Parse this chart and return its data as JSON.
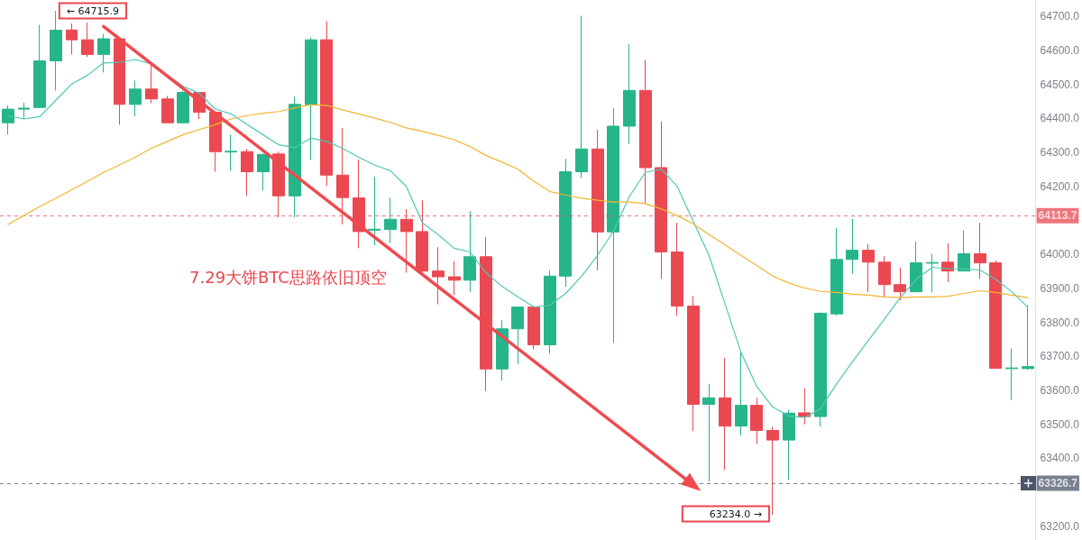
{
  "chart_data": {
    "type": "candlestick",
    "categories": [
      null,
      null,
      null,
      null,
      null,
      null,
      null,
      null,
      null,
      null,
      null,
      null,
      null,
      null,
      null,
      null,
      null,
      null,
      null,
      null,
      null,
      null,
      null,
      null,
      null,
      null,
      null,
      null,
      null,
      null,
      null,
      null,
      null,
      null,
      null,
      null,
      null,
      null,
      null,
      null,
      null,
      null,
      null,
      null,
      null,
      null,
      null,
      null,
      null,
      null,
      null,
      null,
      null,
      null,
      null,
      null,
      null,
      null,
      null,
      null,
      null,
      null,
      null,
      null,
      null
    ],
    "ohlc": [
      [
        64387,
        64438,
        64352,
        64427
      ],
      [
        64427,
        64446,
        64398,
        64430
      ],
      [
        64432,
        64675,
        64430,
        64569
      ],
      [
        64569,
        64715.9,
        64481,
        64659
      ],
      [
        64660,
        64679,
        64588,
        64631
      ],
      [
        64631,
        64682,
        64580,
        64588
      ],
      [
        64588,
        64648,
        64535,
        64634
      ],
      [
        64634,
        64636,
        64381,
        64441
      ],
      [
        64441,
        64511,
        64406,
        64486
      ],
      [
        64486,
        64559,
        64444,
        64457
      ],
      [
        64457,
        64466,
        64387,
        64387
      ],
      [
        64387,
        64480,
        64385,
        64476
      ],
      [
        64476,
        64478,
        64398,
        64418
      ],
      [
        64418,
        64420,
        64243,
        64302
      ],
      [
        64301,
        64352,
        64246,
        64303
      ],
      [
        64302,
        64310,
        64172,
        64243
      ],
      [
        64243,
        64296,
        64188,
        64294
      ],
      [
        64295,
        64302,
        64109,
        64172
      ],
      [
        64172,
        64464,
        64109,
        64441
      ],
      [
        64440,
        64638,
        64278,
        64631
      ],
      [
        64631,
        64685,
        64201,
        64233
      ],
      [
        64233,
        64372,
        64088,
        64167
      ],
      [
        64166,
        64279,
        64018,
        64067
      ],
      [
        64071,
        64228,
        64026,
        64074
      ],
      [
        64073,
        64167,
        64033,
        64103
      ],
      [
        64103,
        64133,
        63946,
        64067
      ],
      [
        64067,
        64159,
        63948,
        63951
      ],
      [
        63951,
        64021,
        63853,
        63934
      ],
      [
        63934,
        63980,
        63880,
        63924
      ],
      [
        63924,
        64127,
        63889,
        63993
      ],
      [
        63993,
        64050,
        63598,
        63663
      ],
      [
        63663,
        63806,
        63628,
        63781
      ],
      [
        63781,
        63847,
        63678,
        63845
      ],
      [
        63845,
        63848,
        63721,
        63734
      ],
      [
        63734,
        63953,
        63708,
        63936
      ],
      [
        63936,
        64281,
        63904,
        64243
      ],
      [
        64243,
        64702,
        64225,
        64310
      ],
      [
        64310,
        64366,
        63953,
        64066
      ],
      [
        64066,
        64430,
        63740,
        64377
      ],
      [
        64377,
        64618,
        64324,
        64482
      ],
      [
        64482,
        64572,
        64149,
        64255
      ],
      [
        64255,
        64391,
        63928,
        64007
      ],
      [
        64007,
        64093,
        63819,
        63848
      ],
      [
        63848,
        63877,
        63480,
        63559
      ],
      [
        63559,
        63619,
        63332,
        63578
      ],
      [
        63578,
        63695,
        63366,
        63495
      ],
      [
        63495,
        63715,
        63468,
        63556
      ],
      [
        63556,
        63578,
        63442,
        63482
      ],
      [
        63482,
        63493,
        63234,
        63454
      ],
      [
        63454,
        63543,
        63337,
        63533
      ],
      [
        63534,
        63606,
        63500,
        63523
      ],
      [
        63523,
        63829,
        63494,
        63827
      ],
      [
        63825,
        64078,
        63820,
        63985
      ],
      [
        63985,
        64104,
        63943,
        64012
      ],
      [
        64012,
        64030,
        63889,
        63977
      ],
      [
        63977,
        63995,
        63875,
        63911
      ],
      [
        63911,
        63961,
        63865,
        63890
      ],
      [
        63890,
        64038,
        63888,
        63975
      ],
      [
        63974,
        64002,
        63888,
        63976
      ],
      [
        63977,
        64033,
        63918,
        63951
      ],
      [
        63951,
        64070,
        63950,
        64002
      ],
      [
        64002,
        64093,
        63928,
        63975
      ],
      [
        63975,
        63982,
        63665,
        63665
      ],
      [
        63664,
        63723,
        63572,
        63666
      ],
      [
        63664,
        63851,
        63660,
        63670
      ]
    ],
    "colors": [
      "#26b58a",
      "#26b58a",
      "#26b58a",
      "#26b58a",
      "#ea4951",
      "#ea4951",
      "#26b58a",
      "#ea4951",
      "#26b58a",
      "#ea4951",
      "#ea4951",
      "#26b58a",
      "#ea4951",
      "#ea4951",
      "#26b58a",
      "#ea4951",
      "#26b58a",
      "#ea4951",
      "#26b58a",
      "#26b58a",
      "#ea4951",
      "#ea4951",
      "#ea4951",
      "#26b58a",
      "#26b58a",
      "#ea4951",
      "#ea4951",
      "#ea4951",
      "#ea4951",
      "#26b58a",
      "#ea4951",
      "#26b58a",
      "#26b58a",
      "#ea4951",
      "#26b58a",
      "#26b58a",
      "#26b58a",
      "#ea4951",
      "#26b58a",
      "#26b58a",
      "#ea4951",
      "#ea4951",
      "#ea4951",
      "#ea4951",
      "#26b58a",
      "#ea4951",
      "#26b58a",
      "#ea4951",
      "#ea4951",
      "#26b58a",
      "#ea4951",
      "#26b58a",
      "#26b58a",
      "#26b58a",
      "#ea4951",
      "#ea4951",
      "#ea4951",
      "#26b58a",
      "#26b58a",
      "#ea4951",
      "#26b58a",
      "#ea4951",
      "#ea4951",
      "#26b58a",
      "#26b58a"
    ],
    "series": [
      {
        "type": "line",
        "color": "#4fc7b5",
        "values": [
          64408,
          64398,
          64405,
          64453,
          64501,
          64527,
          64563,
          64565,
          64573,
          64560,
          64527,
          64494,
          64474,
          64428,
          64413,
          64382,
          64352,
          64322,
          64314,
          64342,
          64332,
          64312,
          64286,
          64263,
          64246,
          64200,
          64093,
          64058,
          64018,
          64007,
          63946,
          63906,
          63875,
          63845,
          63850,
          63885,
          63936,
          63997,
          64068,
          64170,
          64241,
          64251,
          64200,
          64098,
          63997,
          63855,
          63713,
          63611,
          63551,
          63525,
          63520,
          63546,
          63619,
          63684,
          63747,
          63809,
          63873,
          63926,
          63962,
          63958,
          63957,
          63954,
          63926,
          63890,
          63845
        ]
      },
      {
        "type": "line",
        "color": "#f2b530",
        "values": [
          64088,
          64114,
          64141,
          64165,
          64190,
          64215,
          64241,
          64263,
          64286,
          64312,
          64332,
          64352,
          64367,
          64381,
          64398,
          64408,
          64415,
          64420,
          64431,
          64440,
          64438,
          64425,
          64413,
          64401,
          64388,
          64372,
          64362,
          64350,
          64337,
          64317,
          64291,
          64271,
          64251,
          64215,
          64185,
          64174,
          64165,
          64159,
          64154,
          64154,
          64149,
          64134,
          64114,
          64090,
          64058,
          64028,
          63997,
          63967,
          63936,
          63916,
          63901,
          63891,
          63888,
          63883,
          63880,
          63875,
          63873,
          63875,
          63875,
          63877,
          63885,
          63893,
          63888,
          63880,
          63873
        ]
      },
      {
        "type": "line",
        "color": "#ef4a4f",
        "marker": "triangle",
        "values": [
          null,
          null,
          null,
          null,
          null,
          null,
          64670,
          null,
          null,
          null,
          null,
          null,
          null,
          null,
          null,
          null,
          null,
          null,
          null,
          null,
          null,
          null,
          null,
          null,
          null,
          null,
          null,
          null,
          null,
          null,
          null,
          null,
          null,
          null,
          null,
          null,
          null,
          null,
          null,
          null,
          null,
          null,
          null,
          63322,
          null,
          null,
          null,
          null,
          null,
          null,
          null,
          null,
          null,
          null,
          null,
          null,
          null,
          null,
          null,
          null,
          null,
          null,
          null,
          null,
          null
        ]
      }
    ],
    "ylim": [
      63160,
      64748
    ],
    "yticks": [
      {
        "value": 63200,
        "label": "63200.0"
      },
      {
        "value": 63400,
        "label": "63400.0"
      },
      {
        "value": 63500,
        "label": "63500.0"
      },
      {
        "value": 63600,
        "label": "63600.0"
      },
      {
        "value": 63700,
        "label": "63700.0"
      },
      {
        "value": 63800,
        "label": "63800.0"
      },
      {
        "value": 63900,
        "label": "63900.0"
      },
      {
        "value": 64000,
        "label": "64000.0"
      },
      {
        "value": 64200,
        "label": "64200.0"
      },
      {
        "value": 64300,
        "label": "64300.0"
      },
      {
        "value": 64400,
        "label": "64400.0"
      },
      {
        "value": 64500,
        "label": "64500.0"
      },
      {
        "value": 64600,
        "label": "64600.0"
      },
      {
        "value": 64700,
        "label": "64700.0"
      }
    ],
    "tick_labels": "y",
    "ref_lines": [
      {
        "axis": "y",
        "value": 64113.7,
        "label": "64113.7",
        "color": "#e8474f",
        "line_style": "dashed"
      },
      {
        "axis": "y",
        "value": 63326.7,
        "label": "63326.7",
        "color": "#4c566a",
        "line_style": "dashed"
      }
    ],
    "annotations": [
      "← 64715.9",
      "63234.0 →",
      "7.29大饼BTC思路依旧顶空"
    ]
  }
}
